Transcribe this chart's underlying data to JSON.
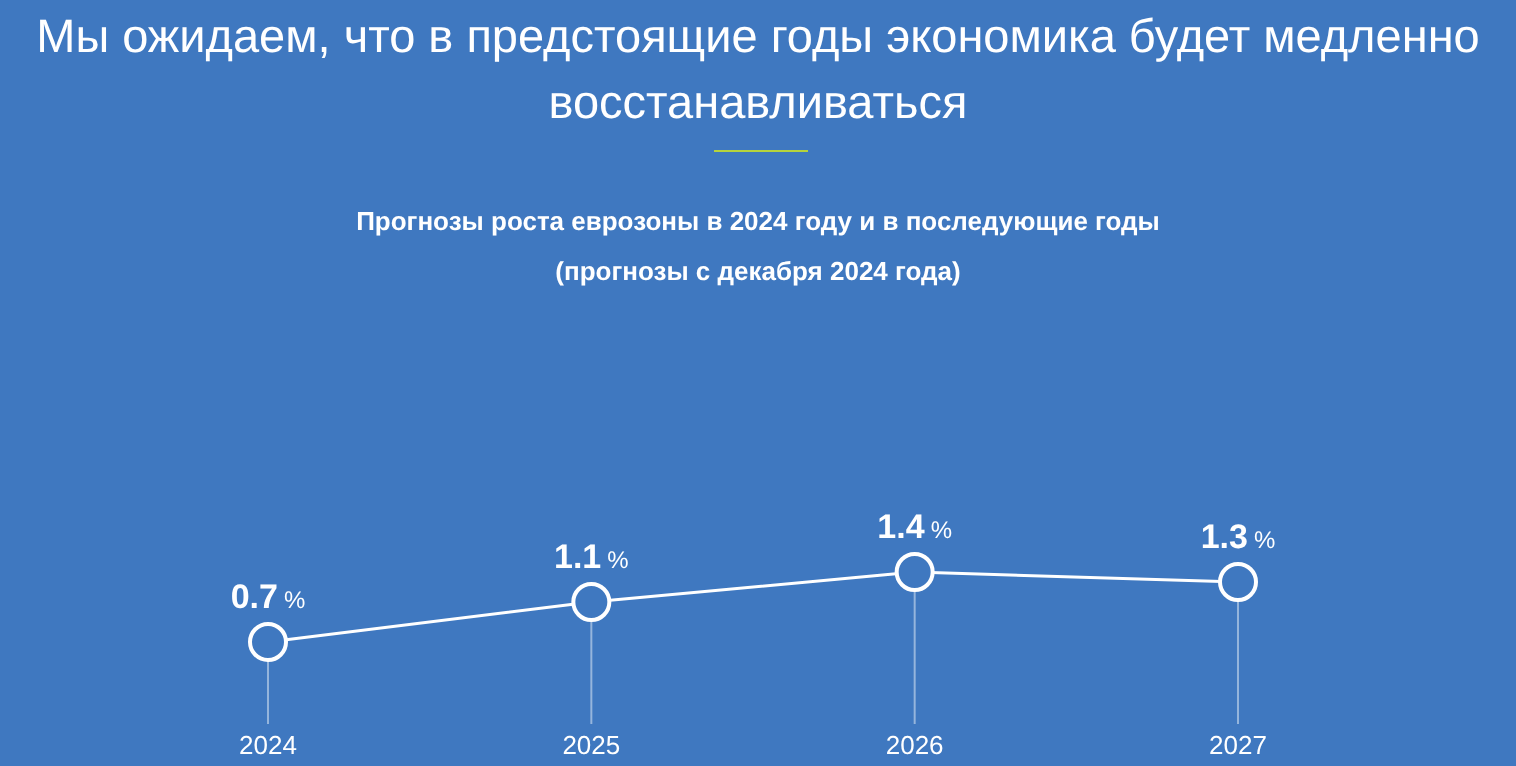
{
  "chart_data": {
    "type": "line",
    "title": "Мы ожидаем, что в предстоящие годы экономика будет медленно восстанавливаться",
    "subtitle": "Прогнозы роста еврозоны в 2024 году и в последующие годы (прогнозы с декабря 2024 года)",
    "categories": [
      "2024",
      "2025",
      "2026",
      "2027"
    ],
    "series": [
      {
        "color": "#ffffff",
        "values": [
          0.7,
          1.1,
          1.4,
          1.3
        ],
        "value_labels": [
          "0.7%",
          "1.1%",
          "1.4%",
          "1.3%"
        ]
      }
    ],
    "marker": "circle",
    "grid": "x",
    "legend": false
  }
}
